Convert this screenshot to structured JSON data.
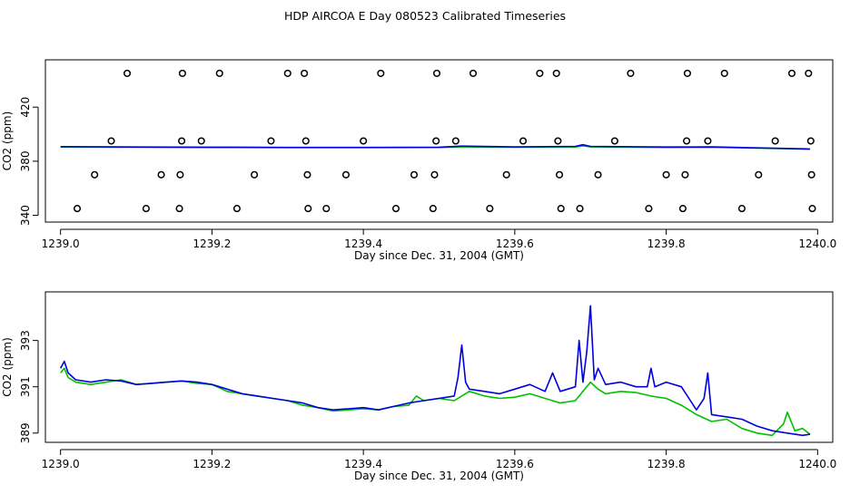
{
  "title": "HDP AIRCOA E  Day 080523  Calibrated Timeseries",
  "colors": {
    "green": "#00c000",
    "blue": "#0000e0",
    "marker": "#000000"
  },
  "chart_data": [
    {
      "type": "scatter",
      "xlabel": "Day since Dec. 31, 2004 (GMT)",
      "ylabel": "CO2 (ppm)",
      "xlim": [
        1238.98,
        1240.02
      ],
      "ylim": [
        335,
        455
      ],
      "x_ticks": [
        1239.0,
        1239.2,
        1239.4,
        1239.6,
        1239.8,
        1240.0
      ],
      "x_tick_labels": [
        "1239.0",
        "1239.2",
        "1239.4",
        "1239.6",
        "1239.8",
        "1240.0"
      ],
      "y_ticks": [
        340,
        380,
        420
      ],
      "y_tick_labels": [
        "340",
        "380",
        "420"
      ],
      "grid": false,
      "series": [
        {
          "style": "points",
          "color": "#000000",
          "x": [
            1239.022,
            1239.045,
            1239.067,
            1239.088,
            1239.113,
            1239.133,
            1239.157,
            1239.158,
            1239.16,
            1239.161,
            1239.186,
            1239.21,
            1239.233,
            1239.256,
            1239.278,
            1239.3,
            1239.322,
            1239.324,
            1239.326,
            1239.327,
            1239.351,
            1239.377,
            1239.4,
            1239.423,
            1239.443,
            1239.467,
            1239.492,
            1239.494,
            1239.496,
            1239.497,
            1239.522,
            1239.545,
            1239.567,
            1239.589,
            1239.611,
            1239.633,
            1239.655,
            1239.657,
            1239.659,
            1239.661,
            1239.686,
            1239.71,
            1239.732,
            1239.753,
            1239.777,
            1239.8,
            1239.822,
            1239.825,
            1239.827,
            1239.828,
            1239.855,
            1239.877,
            1239.9,
            1239.922,
            1239.944,
            1239.966,
            1239.988,
            1239.991,
            1239.992,
            1239.993
          ],
          "y": [
            345,
            370,
            395,
            445,
            345,
            370,
            345,
            370,
            395,
            445,
            395,
            445,
            345,
            370,
            395,
            445,
            445,
            395,
            370,
            345,
            345,
            370,
            395,
            445,
            345,
            370,
            345,
            370,
            395,
            445,
            395,
            445,
            345,
            370,
            395,
            445,
            445,
            395,
            370,
            345,
            345,
            370,
            395,
            445,
            345,
            370,
            345,
            370,
            395,
            445,
            395,
            445,
            345,
            370,
            395,
            445,
            445,
            395,
            370,
            345
          ]
        },
        {
          "style": "line",
          "color": "#00c000",
          "x": [
            1239.0,
            1239.1,
            1239.2,
            1239.3,
            1239.4,
            1239.5,
            1239.53,
            1239.6,
            1239.68,
            1239.69,
            1239.7,
            1239.8,
            1239.86,
            1239.99
          ],
          "y": [
            390.5,
            390.3,
            390.2,
            390.1,
            390.1,
            390.2,
            390.6,
            390.3,
            390.5,
            391.4,
            390.6,
            390.2,
            390.3,
            388.9
          ]
        },
        {
          "style": "line",
          "color": "#0000e0",
          "x": [
            1239.0,
            1239.1,
            1239.2,
            1239.3,
            1239.4,
            1239.5,
            1239.53,
            1239.6,
            1239.68,
            1239.69,
            1239.7,
            1239.8,
            1239.86,
            1239.99
          ],
          "y": [
            390.8,
            390.5,
            390.4,
            390.2,
            390.2,
            390.4,
            391.2,
            390.6,
            391.0,
            392.2,
            391.0,
            390.5,
            390.6,
            389.0
          ]
        }
      ]
    },
    {
      "type": "line",
      "xlabel": "Day since Dec. 31, 2004 (GMT)",
      "ylabel": "CO2 (ppm)",
      "xlim": [
        1238.98,
        1240.02
      ],
      "ylim": [
        388.6,
        395.1
      ],
      "x_ticks": [
        1239.0,
        1239.2,
        1239.4,
        1239.6,
        1239.8,
        1240.0
      ],
      "x_tick_labels": [
        "1239.0",
        "1239.2",
        "1239.4",
        "1239.6",
        "1239.8",
        "1240.0"
      ],
      "y_ticks": [
        389,
        391,
        393
      ],
      "y_tick_labels": [
        "389",
        "391",
        "393"
      ],
      "grid": false,
      "series": [
        {
          "color": "#00c000",
          "x": [
            1239.0,
            1239.005,
            1239.01,
            1239.02,
            1239.04,
            1239.06,
            1239.08,
            1239.1,
            1239.12,
            1239.14,
            1239.16,
            1239.18,
            1239.2,
            1239.22,
            1239.24,
            1239.26,
            1239.28,
            1239.3,
            1239.32,
            1239.34,
            1239.36,
            1239.38,
            1239.4,
            1239.42,
            1239.44,
            1239.46,
            1239.47,
            1239.48,
            1239.5,
            1239.52,
            1239.53,
            1239.54,
            1239.56,
            1239.58,
            1239.6,
            1239.62,
            1239.64,
            1239.66,
            1239.68,
            1239.69,
            1239.7,
            1239.71,
            1239.72,
            1239.74,
            1239.76,
            1239.78,
            1239.8,
            1239.82,
            1239.84,
            1239.86,
            1239.88,
            1239.9,
            1239.92,
            1239.94,
            1239.955,
            1239.96,
            1239.97,
            1239.98,
            1239.99
          ],
          "y": [
            391.6,
            391.8,
            391.4,
            391.2,
            391.1,
            391.2,
            391.3,
            391.1,
            391.15,
            391.2,
            391.25,
            391.15,
            391.1,
            390.8,
            390.7,
            390.6,
            390.5,
            390.4,
            390.2,
            390.1,
            389.95,
            390.0,
            390.05,
            390.0,
            390.15,
            390.2,
            390.6,
            390.4,
            390.5,
            390.4,
            390.6,
            390.8,
            390.6,
            390.5,
            390.55,
            390.7,
            390.5,
            390.3,
            390.4,
            390.8,
            391.2,
            390.9,
            390.7,
            390.8,
            390.75,
            390.6,
            390.5,
            390.2,
            389.8,
            389.5,
            389.6,
            389.2,
            389.0,
            388.9,
            389.4,
            389.9,
            389.1,
            389.2,
            388.95
          ]
        },
        {
          "color": "#0000e0",
          "x": [
            1239.0,
            1239.005,
            1239.01,
            1239.02,
            1239.04,
            1239.06,
            1239.08,
            1239.1,
            1239.12,
            1239.14,
            1239.16,
            1239.18,
            1239.2,
            1239.22,
            1239.24,
            1239.26,
            1239.28,
            1239.3,
            1239.32,
            1239.34,
            1239.36,
            1239.38,
            1239.4,
            1239.42,
            1239.44,
            1239.46,
            1239.48,
            1239.5,
            1239.52,
            1239.525,
            1239.53,
            1239.535,
            1239.54,
            1239.56,
            1239.58,
            1239.6,
            1239.62,
            1239.64,
            1239.65,
            1239.66,
            1239.68,
            1239.685,
            1239.69,
            1239.695,
            1239.7,
            1239.705,
            1239.71,
            1239.72,
            1239.74,
            1239.76,
            1239.775,
            1239.78,
            1239.785,
            1239.8,
            1239.82,
            1239.84,
            1239.85,
            1239.855,
            1239.86,
            1239.88,
            1239.9,
            1239.92,
            1239.94,
            1239.96,
            1239.98,
            1239.99
          ],
          "y": [
            391.8,
            392.1,
            391.6,
            391.3,
            391.2,
            391.3,
            391.25,
            391.1,
            391.15,
            391.2,
            391.25,
            391.2,
            391.1,
            390.9,
            390.7,
            390.6,
            390.5,
            390.4,
            390.3,
            390.1,
            390.0,
            390.05,
            390.1,
            390.0,
            390.15,
            390.3,
            390.4,
            390.5,
            390.6,
            391.4,
            392.8,
            391.2,
            390.9,
            390.8,
            390.7,
            390.9,
            391.1,
            390.8,
            391.6,
            390.8,
            391.0,
            393.0,
            391.2,
            392.5,
            394.5,
            391.3,
            391.8,
            391.1,
            391.2,
            391.0,
            391.0,
            391.8,
            391.0,
            391.2,
            391.0,
            390.0,
            390.5,
            391.6,
            389.8,
            389.7,
            389.6,
            389.3,
            389.1,
            389.0,
            388.9,
            388.95
          ]
        }
      ]
    }
  ]
}
